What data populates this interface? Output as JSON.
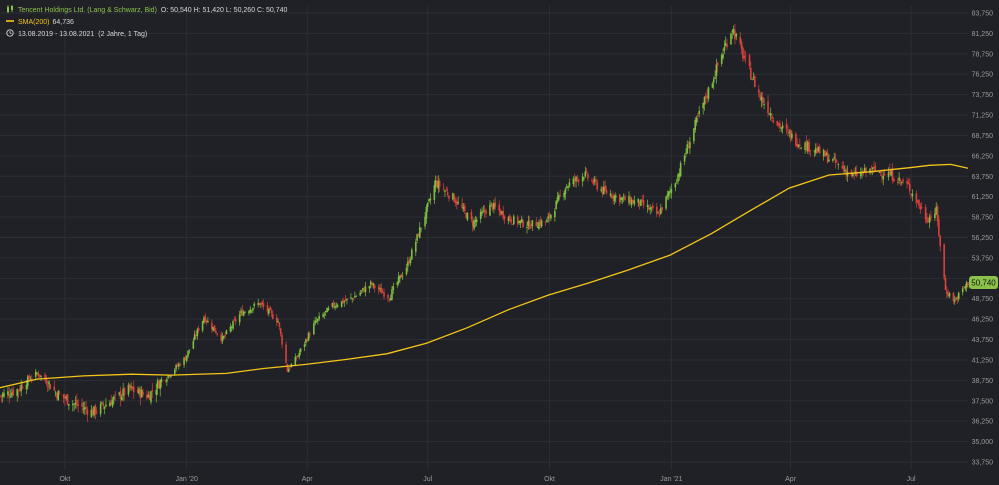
{
  "header": {
    "instrument": "Tencent Holdings Ltd. (Lang & Schwarz, Bid)",
    "ohlc": "O: 50,540  H: 51,420  L: 50,260  C: 50,740",
    "sma_label": "SMA(200)",
    "sma_value": "64,736",
    "period": "13.08.2019 - 13.08.2021",
    "period_note": "(2 Jahre, 1 Tag)",
    "price_badge": "50,740"
  },
  "colors": {
    "background": "#1f2126",
    "grid": "#2b2e34",
    "up": "#7fbf3f",
    "down": "#d9413b",
    "sma": "#f5c518",
    "axis_text": "#9a9a9a"
  },
  "chart_data": {
    "type": "line",
    "title": "",
    "xlabel": "",
    "ylabel": "",
    "grid": true,
    "ylim": [
      33.75,
      85.0
    ],
    "y_ticks": [
      "83,750",
      "81,250",
      "78,750",
      "76,250",
      "73,750",
      "71,250",
      "68,750",
      "66,250",
      "63,750",
      "61,250",
      "58,750",
      "56,250",
      "53,750",
      "51,250",
      "48,750",
      "46,250",
      "43,750",
      "41,250",
      "38,750",
      "37,500",
      "36,250",
      "35,000",
      "33,750"
    ],
    "y_tick_values": [
      83.75,
      81.25,
      78.75,
      76.25,
      73.75,
      71.25,
      68.75,
      66.25,
      63.75,
      61.25,
      58.75,
      56.25,
      53.75,
      51.25,
      48.75,
      46.25,
      43.75,
      41.25,
      38.75,
      37.5,
      36.25,
      35.0,
      33.75
    ],
    "x_ticks": [
      {
        "label": "Okt",
        "date": "2019-10-01"
      },
      {
        "label": "Jan '20",
        "date": "2020-01-01"
      },
      {
        "label": "Apr",
        "date": "2020-04-01"
      },
      {
        "label": "Jul",
        "date": "2020-07-01"
      },
      {
        "label": "Okt",
        "date": "2020-10-01"
      },
      {
        "label": "Jan '21",
        "date": "2021-01-01"
      },
      {
        "label": "Apr",
        "date": "2021-04-01"
      },
      {
        "label": "Jul",
        "date": "2021-07-01"
      }
    ],
    "x_range": [
      "2019-08-13",
      "2021-08-13"
    ],
    "series": [
      {
        "name": "Tencent Holdings Ltd. (Lang & Schwarz, Bid)",
        "kind": "close",
        "points": [
          [
            "2019-08-13",
            37.8
          ],
          [
            "2019-08-27",
            38.2
          ],
          [
            "2019-09-10",
            39.6
          ],
          [
            "2019-09-24",
            38.0
          ],
          [
            "2019-10-08",
            37.3
          ],
          [
            "2019-10-22",
            36.8
          ],
          [
            "2019-11-05",
            37.5
          ],
          [
            "2019-11-19",
            38.2
          ],
          [
            "2019-12-03",
            37.8
          ],
          [
            "2019-12-17",
            39.2
          ],
          [
            "2019-12-31",
            41.5
          ],
          [
            "2020-01-14",
            46.5
          ],
          [
            "2020-01-28",
            43.8
          ],
          [
            "2020-02-11",
            47.0
          ],
          [
            "2020-02-25",
            48.2
          ],
          [
            "2020-03-10",
            46.0
          ],
          [
            "2020-03-17",
            40.0
          ],
          [
            "2020-03-24",
            41.5
          ],
          [
            "2020-04-07",
            45.8
          ],
          [
            "2020-04-21",
            48.0
          ],
          [
            "2020-05-05",
            48.8
          ],
          [
            "2020-05-19",
            50.5
          ],
          [
            "2020-06-02",
            49.0
          ],
          [
            "2020-06-16",
            53.0
          ],
          [
            "2020-06-30",
            59.5
          ],
          [
            "2020-07-07",
            63.0
          ],
          [
            "2020-07-21",
            61.0
          ],
          [
            "2020-08-04",
            58.0
          ],
          [
            "2020-08-18",
            60.2
          ],
          [
            "2020-09-01",
            58.5
          ],
          [
            "2020-09-15",
            57.8
          ],
          [
            "2020-09-29",
            58.2
          ],
          [
            "2020-10-13",
            62.5
          ],
          [
            "2020-10-27",
            64.0
          ],
          [
            "2020-11-10",
            62.0
          ],
          [
            "2020-11-24",
            61.0
          ],
          [
            "2020-12-08",
            60.5
          ],
          [
            "2020-12-22",
            59.0
          ],
          [
            "2021-01-05",
            63.5
          ],
          [
            "2021-01-19",
            70.0
          ],
          [
            "2021-02-02",
            76.0
          ],
          [
            "2021-02-16",
            82.0
          ],
          [
            "2021-02-23",
            79.0
          ],
          [
            "2021-03-09",
            73.5
          ],
          [
            "2021-03-23",
            70.0
          ],
          [
            "2021-04-06",
            68.0
          ],
          [
            "2021-04-20",
            67.0
          ],
          [
            "2021-05-04",
            65.5
          ],
          [
            "2021-05-18",
            63.8
          ],
          [
            "2021-06-01",
            64.5
          ],
          [
            "2021-06-15",
            64.0
          ],
          [
            "2021-06-29",
            62.5
          ],
          [
            "2021-07-13",
            58.5
          ],
          [
            "2021-07-20",
            59.5
          ],
          [
            "2021-07-27",
            49.8
          ],
          [
            "2021-08-03",
            48.5
          ],
          [
            "2021-08-13",
            50.74
          ]
        ]
      },
      {
        "name": "SMA(200)",
        "kind": "sma",
        "points": [
          [
            "2019-08-13",
            38.3
          ],
          [
            "2019-09-10",
            38.9
          ],
          [
            "2019-10-15",
            39.3
          ],
          [
            "2019-11-20",
            39.5
          ],
          [
            "2019-12-20",
            39.4
          ],
          [
            "2020-01-31",
            39.6
          ],
          [
            "2020-02-28",
            40.2
          ],
          [
            "2020-03-31",
            40.7
          ],
          [
            "2020-04-30",
            41.3
          ],
          [
            "2020-05-31",
            42.0
          ],
          [
            "2020-06-30",
            43.3
          ],
          [
            "2020-07-31",
            45.2
          ],
          [
            "2020-08-31",
            47.4
          ],
          [
            "2020-09-30",
            49.2
          ],
          [
            "2020-10-31",
            50.7
          ],
          [
            "2020-11-30",
            52.3
          ],
          [
            "2020-12-31",
            54.1
          ],
          [
            "2021-01-31",
            56.7
          ],
          [
            "2021-02-28",
            59.4
          ],
          [
            "2021-03-31",
            62.3
          ],
          [
            "2021-04-30",
            63.9
          ],
          [
            "2021-05-31",
            64.3
          ],
          [
            "2021-06-30",
            64.8
          ],
          [
            "2021-07-15",
            65.1
          ],
          [
            "2021-07-31",
            65.2
          ],
          [
            "2021-08-13",
            64.74
          ]
        ]
      }
    ]
  }
}
